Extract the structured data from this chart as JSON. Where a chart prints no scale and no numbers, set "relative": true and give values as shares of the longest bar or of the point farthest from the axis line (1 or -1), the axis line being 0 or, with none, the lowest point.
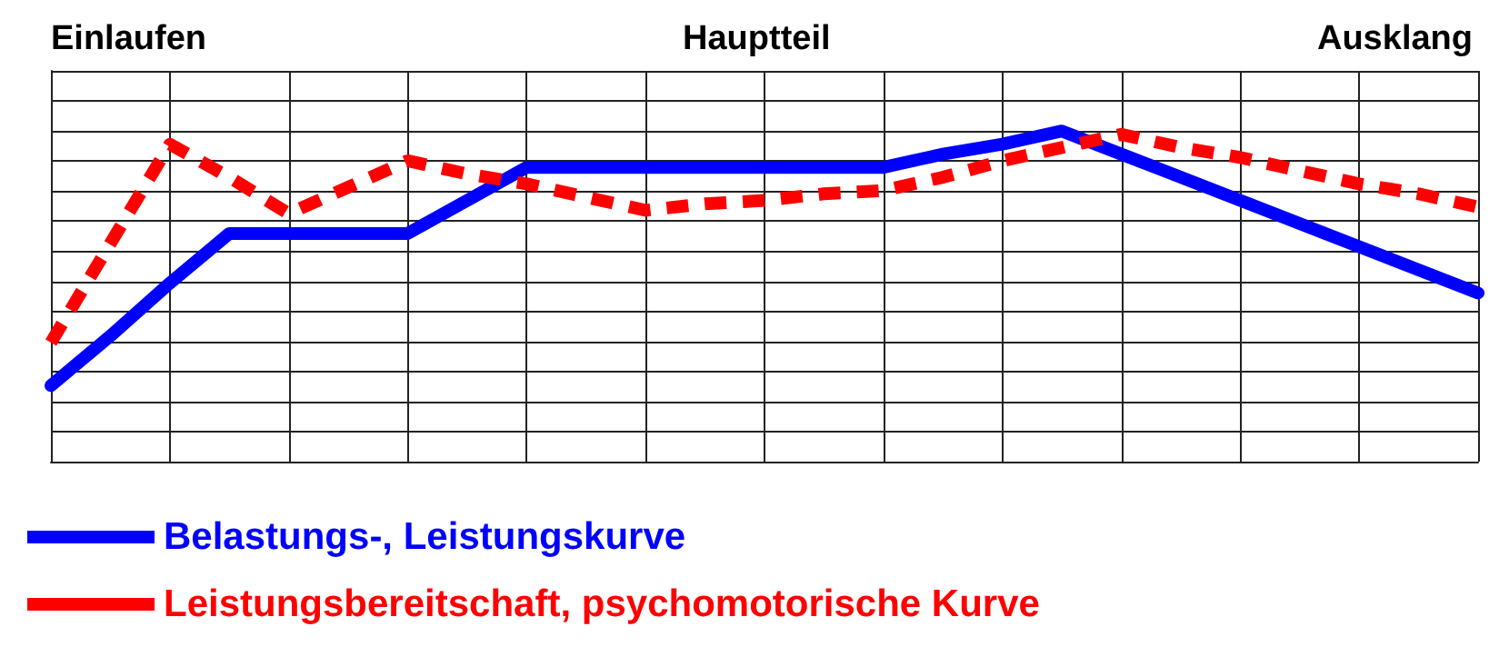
{
  "chart_data": {
    "type": "line",
    "relative": true,
    "categories": [
      null,
      null,
      null,
      null,
      null,
      null,
      null,
      null,
      null,
      null,
      null,
      null,
      null,
      null,
      null,
      null,
      null,
      null,
      null,
      null,
      null,
      null,
      null,
      null,
      null
    ],
    "tick_labels": false,
    "grid": true,
    "legend": "bottom",
    "marker": "none",
    "annotations": [
      "Einlaufen",
      "Hauptteil",
      "Ausklang"
    ],
    "series": [
      {
        "name": "Belastungs-, Leistungskurve",
        "color": "#0000ff",
        "line_style": "solid",
        "values": [
          0.23,
          0.38,
          0.54,
          0.69,
          0.69,
          0.69,
          0.69,
          0.79,
          0.89,
          0.89,
          0.89,
          0.89,
          0.89,
          0.89,
          0.89,
          0.93,
          0.96,
          1,
          0.93,
          0.86,
          0.79,
          0.72,
          0.65,
          0.58,
          0.51
        ]
      },
      {
        "name": "Leistungsbereitschaft, psychomotorische Kurve",
        "color": "#ff0000",
        "line_style": "dashed",
        "values": [
          0.36,
          0.66,
          0.96,
          0.86,
          0.75,
          0.83,
          0.91,
          0.87,
          0.84,
          0.8,
          0.76,
          0.78,
          0.79,
          0.81,
          0.82,
          0.86,
          0.91,
          0.95,
          0.99,
          0.95,
          0.92,
          0.88,
          0.84,
          0.81,
          0.77
        ]
      }
    ]
  }
}
